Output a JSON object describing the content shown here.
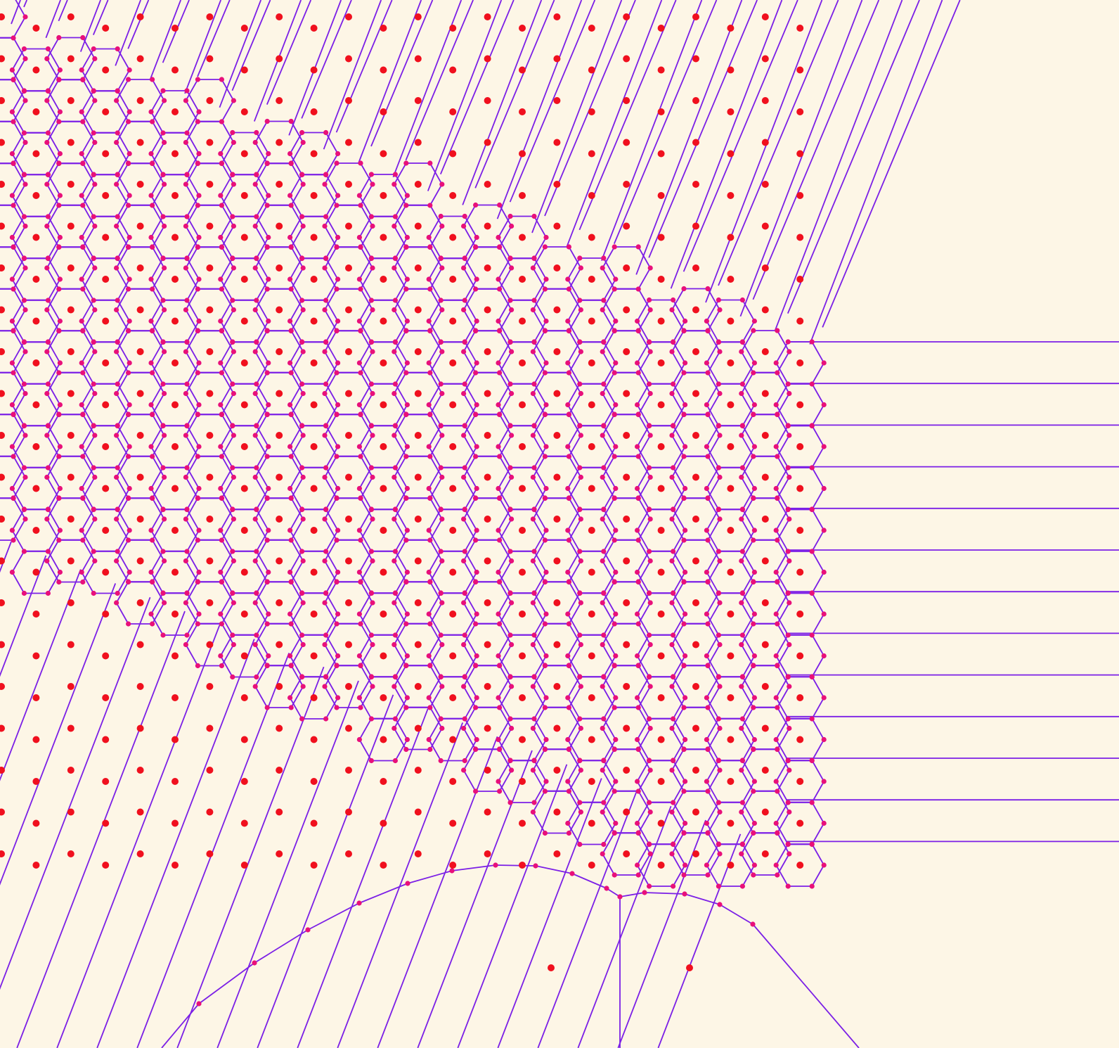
{
  "colors": {
    "background": "#fdf6e6",
    "edge": "#7b1fe6",
    "site": "#f0101e",
    "vertex": "#e8107a"
  },
  "diagram": {
    "type": "voronoi",
    "structure": "hexagonal-lattice",
    "hexagon_orientation": "flat-top",
    "lattice_rows": 25,
    "lattice_columns": 24,
    "left_edge_cut_off": true,
    "outer_rays": [
      "upper-right-diagonal",
      "lower-left-diagonal",
      "horizontal-right"
    ],
    "isolated_sites": 2
  }
}
